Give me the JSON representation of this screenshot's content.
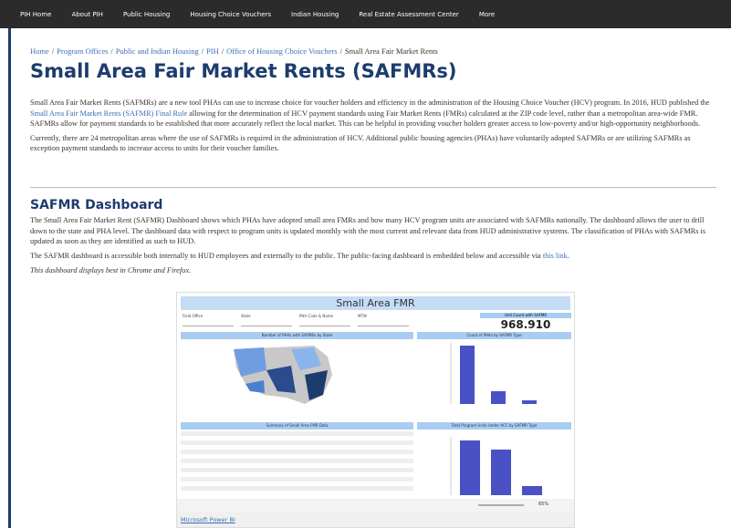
{
  "nav": {
    "items": [
      "PIH Home",
      "About PIH",
      "Public Housing",
      "Housing Choice Vouchers",
      "Indian Housing",
      "Real Estate Assessment Center",
      "More"
    ]
  },
  "breadcrumb": {
    "links": [
      "Home",
      "Program Offices",
      "Public and Indian Housing",
      "PIH",
      "Office of Housing Choice Vouchers"
    ],
    "separator": "/",
    "current": "Small Area Fair Market Rents"
  },
  "title": "Small Area Fair Market Rents (SAFMRs)",
  "intro": {
    "p1": {
      "before": "Small Area Fair Market Rents (SAFMRs) are a new tool PHAs can use to increase choice for voucher holders and efficiency in the administration of the Housing Choice Voucher (HCV) program. In 2016, HUD published the ",
      "link": "Small Area Fair Market Rents (SAFMR) Final Rule",
      "after": " allowing for the determination of HCV payment standards using Fair Market Rents (FMRs) calculated at the ZIP code level, rather than a metropolitan area-wide FMR. SAFMRs allow for payment standards to be established that more accurately reflect the local market. This can be helpful in providing voucher holders greater access to low-poverty and/or high-opportunity neighborhoods."
    },
    "p2": "Currently, there are 24 metropolitan areas where the use of SAFMRs is required in the administration of HCV. Additional public housing agencies (PHAs) have voluntarily adopted SAFMRs or are utilizing SAFMRs as exception payment standards to increase access to units for their voucher families."
  },
  "dashboard_section": {
    "heading": "SAFMR Dashboard",
    "p3": "The Small Area Fair Market Rent (SAFMR) Dashboard shows which PHAs have adopted small area FMRs and how many HCV program units are associated with SAFMRs nationally. The dashboard allows the user to drill down to the state and PHA level. The dashboard data with respect to program units is updated monthly with the most current and relevant data from HUD administrative systems. The classification of PHAs with SAFMRs is updated as soon as they are identified as such to HUD.",
    "p4": {
      "before": "The SAFMR dashboard is accessible both internally to HUD employees and externally to the public. The public-facing dashboard is embedded below and accessible via ",
      "link": "this link",
      "after": "."
    },
    "note": "This dashboard displays best in Chrome and Firefox."
  },
  "embed": {
    "title": "Small Area FMR",
    "filters": [
      "Field Office",
      "State",
      "PHA Code & Name",
      "MTW"
    ],
    "kpi_label": "Unit Count with SAFMR",
    "kpi_value": "968.910",
    "headers": [
      "Number of PHAs with SAFMRs by State",
      "Count of PHAs by SAFMR Type",
      "Summary of Small Area FMR Data",
      "Total Program Units Under ACC by SAFMR Type"
    ],
    "zoom": "65%",
    "footer": "Microsoft Power BI"
  }
}
